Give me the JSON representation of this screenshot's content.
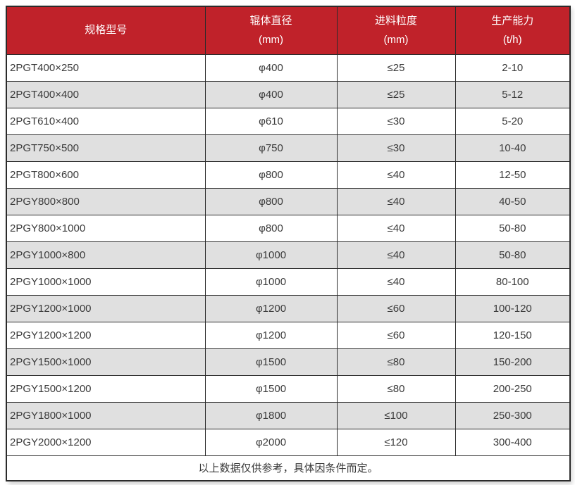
{
  "table": {
    "columns": [
      {
        "line1": "规格型号",
        "line2": ""
      },
      {
        "line1": "辊体直径",
        "line2": "(mm)"
      },
      {
        "line1": "进料粒度",
        "line2": "(mm)"
      },
      {
        "line1": "生产能力",
        "line2": "(t/h)"
      }
    ],
    "rows": [
      [
        "2PGT400×250",
        "φ400",
        "≤25",
        "2-10"
      ],
      [
        "2PGT400×400",
        "φ400",
        "≤25",
        "5-12"
      ],
      [
        "2PGT610×400",
        "φ610",
        "≤30",
        "5-20"
      ],
      [
        "2PGT750×500",
        "φ750",
        "≤30",
        "10-40"
      ],
      [
        "2PGT800×600",
        "φ800",
        "≤40",
        "12-50"
      ],
      [
        "2PGY800×800",
        "φ800",
        "≤40",
        "40-50"
      ],
      [
        "2PGY800×1000",
        "φ800",
        "≤40",
        "50-80"
      ],
      [
        "2PGY1000×800",
        "φ1000",
        "≤40",
        "50-80"
      ],
      [
        "2PGY1000×1000",
        "φ1000",
        "≤40",
        "80-100"
      ],
      [
        "2PGY1200×1000",
        "φ1200",
        "≤60",
        "100-120"
      ],
      [
        "2PGY1200×1200",
        "φ1200",
        "≤60",
        "120-150"
      ],
      [
        "2PGY1500×1000",
        "φ1500",
        "≤80",
        "150-200"
      ],
      [
        "2PGY1500×1200",
        "φ1500",
        "≤80",
        "200-250"
      ],
      [
        "2PGY1800×1000",
        "φ1800",
        "≤100",
        "250-300"
      ],
      [
        "2PGY2000×1200",
        "φ2000",
        "≤120",
        "300-400"
      ]
    ],
    "footer": "以上数据仅供参考，具体因条件而定。",
    "colors": {
      "header_bg": "#c0222a",
      "header_text": "#ffffff",
      "alt_row_bg": "#e0e0e0",
      "border": "#2b2b2b",
      "cell_text": "#3a3a3a"
    }
  }
}
